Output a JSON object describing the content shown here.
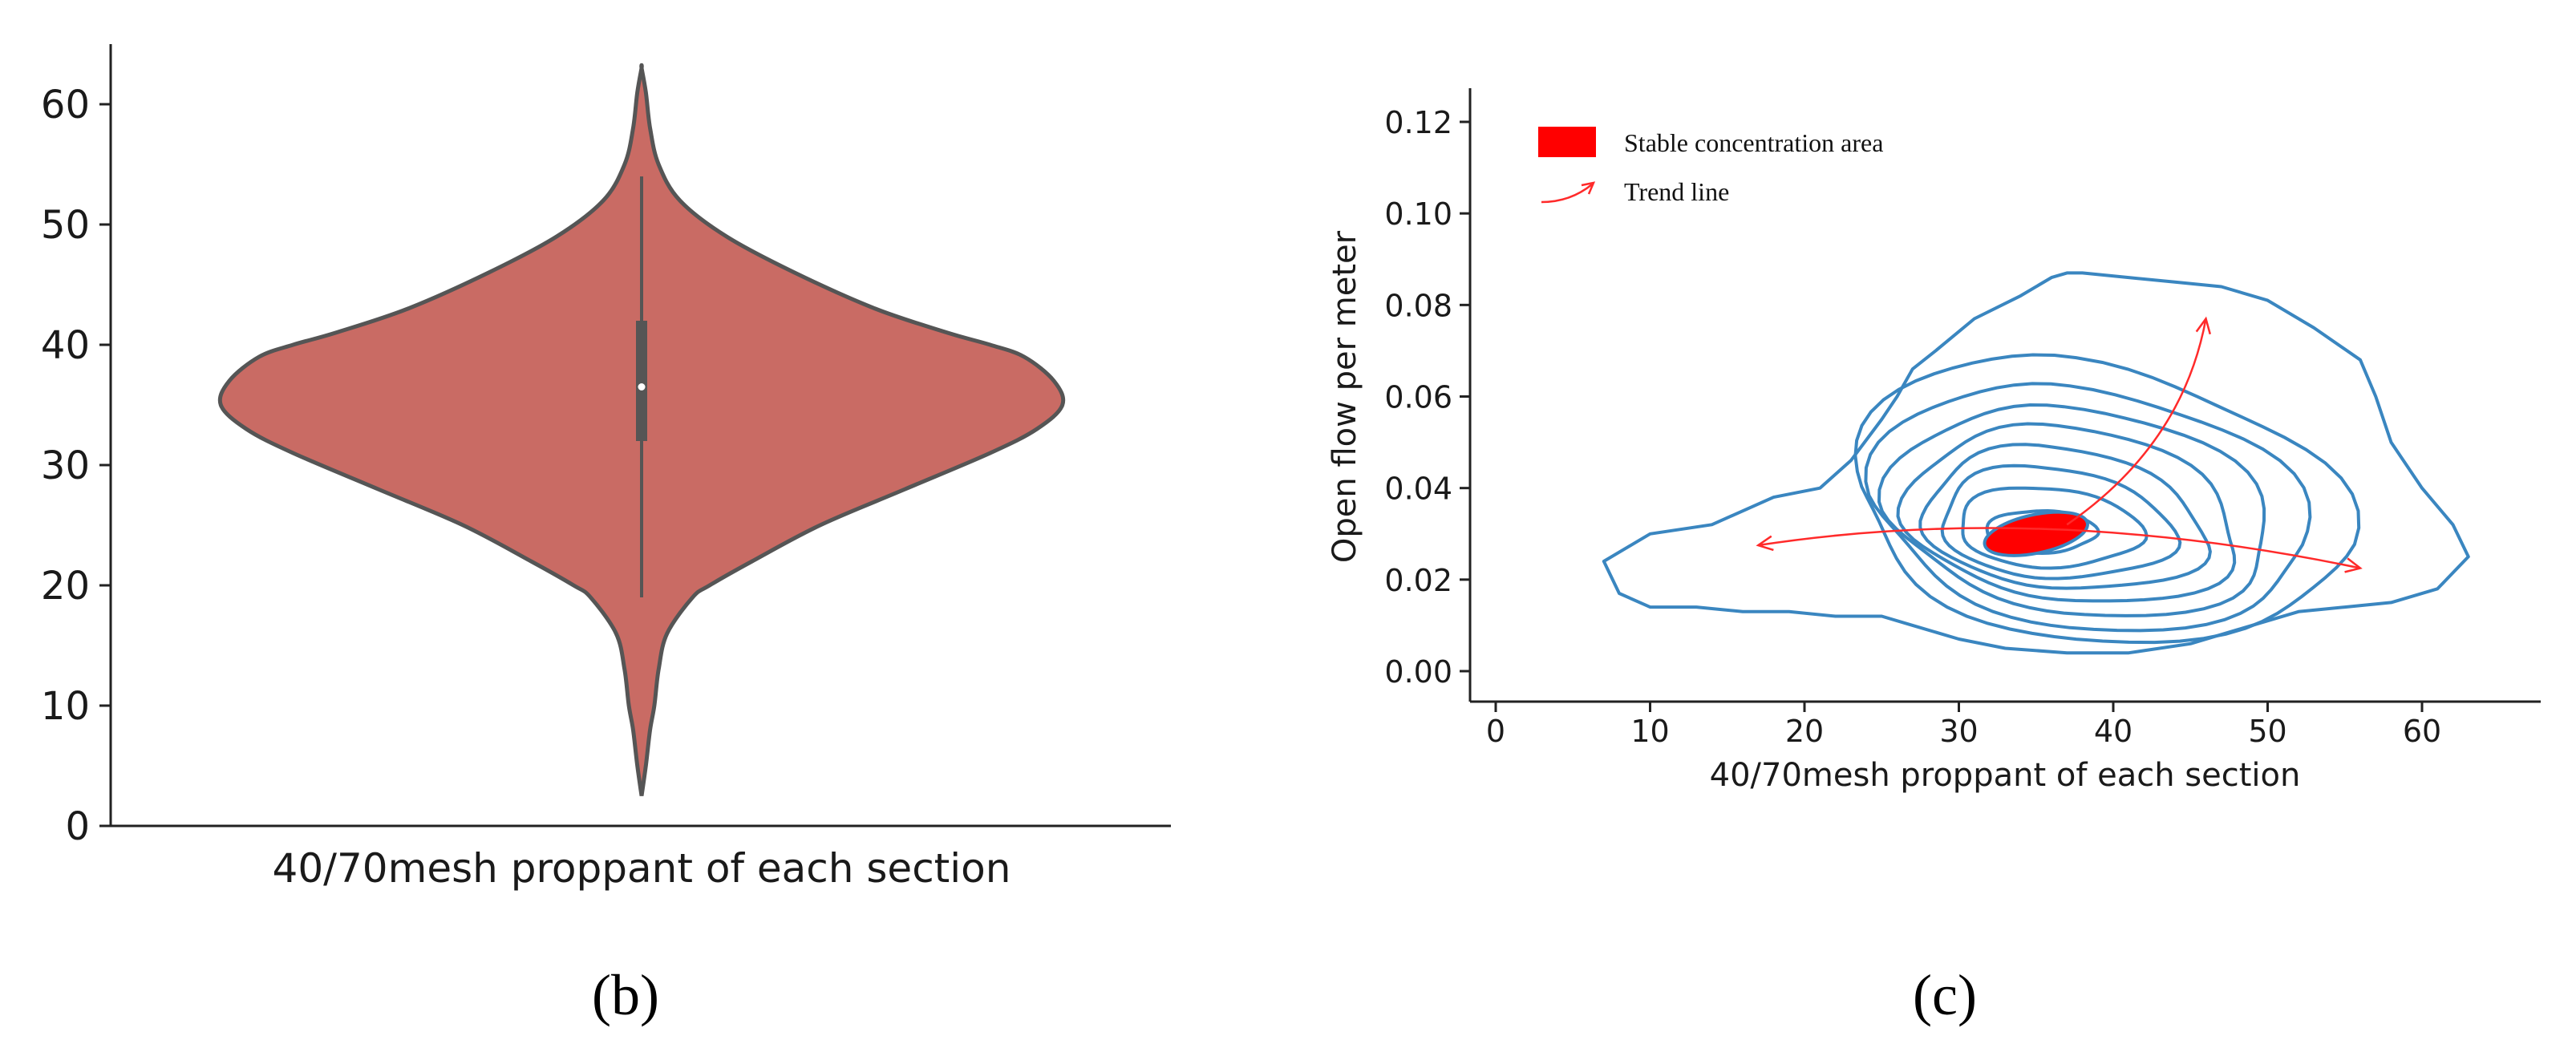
{
  "chart_data": [
    {
      "type": "violin",
      "panel_label": "(b)",
      "xlabel": "40/70mesh proppant of each section",
      "ylabel": "",
      "ylim": [
        0,
        65
      ],
      "yticks": [
        0,
        10,
        20,
        30,
        40,
        50,
        60
      ],
      "fill_color": "#c96b64",
      "outline_color": "#555555",
      "density_profile": {
        "y": [
          2.5,
          5,
          8,
          10,
          13,
          16,
          19,
          20,
          22,
          25,
          28,
          31,
          33,
          35,
          37,
          39,
          40,
          41,
          43,
          46,
          49,
          52,
          55,
          58,
          61,
          63
        ],
        "half_width_fraction": [
          0.0,
          0.01,
          0.02,
          0.03,
          0.04,
          0.06,
          0.12,
          0.16,
          0.26,
          0.42,
          0.62,
          0.82,
          0.93,
          0.99,
          0.97,
          0.9,
          0.82,
          0.72,
          0.55,
          0.36,
          0.2,
          0.09,
          0.04,
          0.02,
          0.01,
          0.0
        ]
      },
      "box": {
        "whisker_low": 19,
        "q1": 32,
        "median": 36.5,
        "q3": 42,
        "whisker_high": 54
      }
    },
    {
      "type": "kde_contour",
      "panel_label": "(c)",
      "xlabel": "40/70mesh proppant of each section",
      "ylabel": "Open flow per meter",
      "xlim": [
        -2,
        67
      ],
      "ylim": [
        -0.006,
        0.127
      ],
      "xticks": [
        0,
        10,
        20,
        30,
        40,
        50,
        60
      ],
      "yticks": [
        0.0,
        0.02,
        0.04,
        0.06,
        0.08,
        0.1,
        0.12
      ],
      "yticklabels": [
        "0.00",
        "0.02",
        "0.04",
        "0.06",
        "0.08",
        "0.10",
        "0.12"
      ],
      "contour_color": "#3a86c0",
      "contours": [
        {
          "cx": 35,
          "cy": 0.03,
          "rx": 3.5,
          "ry": 0.0045
        },
        {
          "cx": 35.3,
          "cy": 0.0305,
          "rx": 5.8,
          "ry": 0.0085
        },
        {
          "cx": 35.6,
          "cy": 0.031,
          "rx": 7.4,
          "ry": 0.0118
        },
        {
          "cx": 36.0,
          "cy": 0.0315,
          "rx": 9.0,
          "ry": 0.015
        },
        {
          "cx": 36.4,
          "cy": 0.032,
          "rx": 10.6,
          "ry": 0.0185
        },
        {
          "cx": 36.8,
          "cy": 0.0325,
          "rx": 12.2,
          "ry": 0.022
        },
        {
          "cx": 37.2,
          "cy": 0.033,
          "rx": 13.8,
          "ry": 0.0258
        },
        {
          "cx": 37.6,
          "cy": 0.034,
          "rx": 15.6,
          "ry": 0.03
        }
      ],
      "outer_contour": {
        "x": [
          7,
          10,
          14,
          18,
          21,
          23,
          25,
          26,
          27,
          28.5,
          31,
          34,
          36,
          37,
          38,
          41,
          44,
          47,
          50,
          53,
          56,
          57,
          58,
          60,
          62,
          63,
          61,
          58,
          55,
          52,
          48,
          45,
          41,
          37,
          33,
          30,
          27,
          25,
          22,
          19,
          16,
          13,
          10,
          8,
          7
        ],
        "y": [
          0.024,
          0.03,
          0.032,
          0.038,
          0.04,
          0.046,
          0.055,
          0.06,
          0.066,
          0.07,
          0.077,
          0.082,
          0.086,
          0.087,
          0.087,
          0.086,
          0.085,
          0.084,
          0.081,
          0.075,
          0.068,
          0.06,
          0.05,
          0.04,
          0.032,
          0.025,
          0.018,
          0.015,
          0.014,
          0.013,
          0.009,
          0.006,
          0.004,
          0.004,
          0.005,
          0.007,
          0.01,
          0.012,
          0.012,
          0.013,
          0.013,
          0.014,
          0.014,
          0.017,
          0.024
        ]
      },
      "stable_area": {
        "cx": 35,
        "cy": 0.03,
        "rx": 3.4,
        "ry": 0.0042,
        "rotation_deg": -12,
        "color": "#ff0000"
      },
      "trend_lines": [
        {
          "from": [
            17,
            0.0275
          ],
          "to": [
            56,
            0.0225
          ],
          "via": [
            36,
            0.031
          ],
          "double_headed": true
        },
        {
          "from": [
            37,
            0.032
          ],
          "to": [
            46,
            0.077
          ],
          "via": [
            43,
            0.052
          ],
          "double_headed": false
        }
      ],
      "legend": [
        {
          "label": "Stable concentration area",
          "kind": "patch",
          "color": "#ff0000"
        },
        {
          "label": "Trend line",
          "kind": "arrow",
          "color": "#ff2a2a"
        }
      ]
    }
  ]
}
